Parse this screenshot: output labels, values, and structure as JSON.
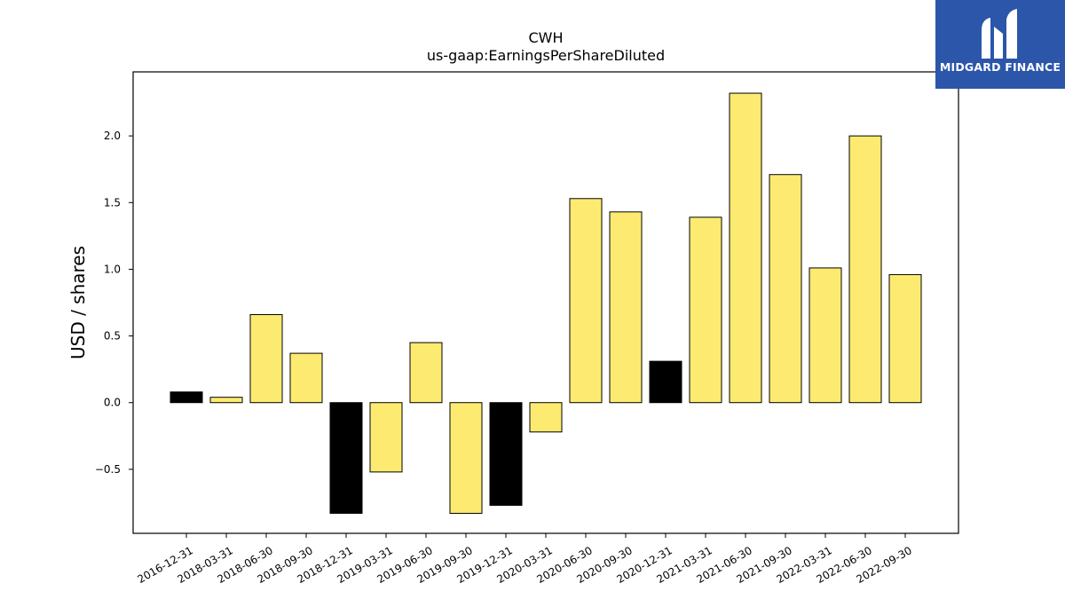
{
  "chart_data": {
    "type": "bar",
    "title": "CWH",
    "subtitle": "us-gaap:EarningsPerShareDiluted",
    "xlabel": "",
    "ylabel": "USD / shares",
    "categories": [
      "2016-12-31",
      "2018-03-31",
      "2018-06-30",
      "2018-09-30",
      "2018-12-31",
      "2019-03-31",
      "2019-06-30",
      "2019-09-30",
      "2019-12-31",
      "2020-03-31",
      "2020-06-30",
      "2020-09-30",
      "2020-12-31",
      "2021-03-31",
      "2021-06-30",
      "2021-09-30",
      "2022-03-31",
      "2022-06-30",
      "2022-09-30"
    ],
    "values": [
      0.08,
      0.04,
      0.66,
      0.37,
      -0.83,
      -0.52,
      0.45,
      -0.83,
      -0.77,
      -0.22,
      1.53,
      1.43,
      0.31,
      1.39,
      2.32,
      1.71,
      1.01,
      2.0,
      0.96
    ],
    "highlight": [
      true,
      false,
      false,
      false,
      true,
      false,
      false,
      false,
      true,
      false,
      false,
      false,
      true,
      false,
      false,
      false,
      false,
      false,
      false
    ],
    "ylim": [
      -0.98,
      2.48
    ],
    "yticks": [
      -0.5,
      0.0,
      0.5,
      1.0,
      1.5,
      2.0
    ],
    "grid": false,
    "colors": {
      "bar": "#fdeb71",
      "highlight": "#000000",
      "edge": "#000000"
    }
  },
  "logo": {
    "text": "MIDGARD FINANCE"
  }
}
